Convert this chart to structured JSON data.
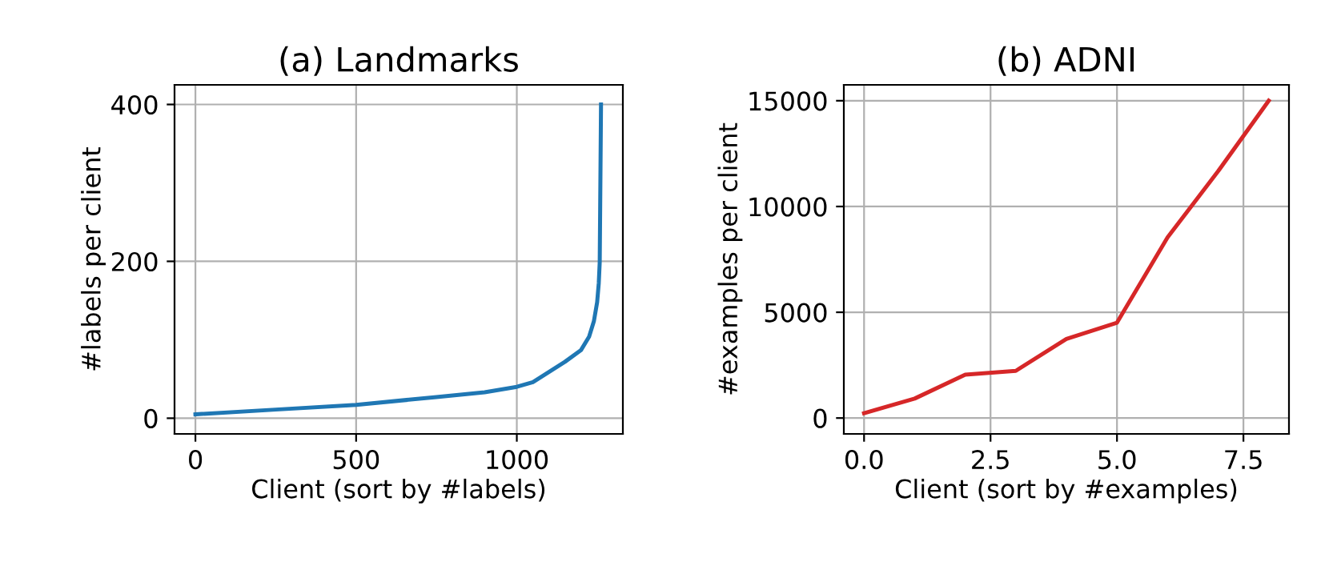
{
  "chart_data": [
    {
      "type": "line",
      "title": "(a) Landmarks",
      "xlabel": "Client (sort by #labels)",
      "ylabel": "#labels per client",
      "grid": true,
      "xlim": [
        -65,
        1330
      ],
      "ylim": [
        -20,
        425
      ],
      "xticks": [
        0,
        500,
        1000
      ],
      "yticks": [
        0,
        200,
        400
      ],
      "series": [
        {
          "color": "#1f77b4",
          "x": [
            0,
            250,
            500,
            750,
            900,
            1000,
            1050,
            1100,
            1150,
            1200,
            1225,
            1240,
            1250,
            1255,
            1258,
            1262
          ],
          "values": [
            5,
            11,
            17,
            27,
            33,
            40,
            46,
            59,
            72,
            87,
            104,
            124,
            148,
            172,
            199,
            400
          ]
        }
      ]
    },
    {
      "type": "line",
      "title": "(b) ADNI",
      "xlabel": "Client (sort by #examples)",
      "ylabel": "#examples per client",
      "grid": true,
      "xlim": [
        -0.4,
        8.4
      ],
      "ylim": [
        -750,
        15750
      ],
      "xticks": [
        {
          "value": 0,
          "label": "0.0"
        },
        2.5,
        {
          "value": 5,
          "label": "5.0"
        },
        7.5
      ],
      "yticks": [
        0,
        5000,
        10000,
        15000
      ],
      "series": [
        {
          "color": "#d62728",
          "x": [
            0,
            1,
            2,
            3,
            4,
            5,
            6,
            7,
            8
          ],
          "values": [
            230,
            920,
            2050,
            2230,
            3740,
            4510,
            8540,
            11670,
            15000
          ]
        }
      ]
    }
  ]
}
